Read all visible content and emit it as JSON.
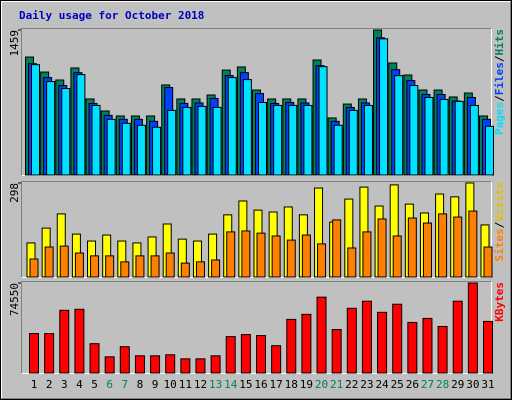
{
  "chart_data": [
    {
      "type": "bar",
      "title": "Daily usage for October 2018",
      "title_color": "#0000c0",
      "ylim": [
        0,
        1459
      ],
      "yticks": [
        1459
      ],
      "legend_separator": "/",
      "series": [
        {
          "name": "Hits",
          "color": "#00805c",
          "values": [
            1187,
            1036,
            956,
            1077,
            765,
            644,
            594,
            594,
            594,
            906,
            765,
            765,
            805,
            1056,
            1087,
            855,
            765,
            765,
            765,
            1157,
            574,
            714,
            765,
            1459,
            1127,
            1006,
            855,
            855,
            785,
            825,
            594
          ]
        },
        {
          "name": "Files",
          "color": "#0040ff",
          "values": [
            1120,
            980,
            900,
            1030,
            720,
            600,
            560,
            560,
            540,
            880,
            720,
            725,
            770,
            1000,
            1030,
            820,
            720,
            730,
            725,
            1100,
            540,
            680,
            725,
            1380,
            1060,
            950,
            810,
            810,
            745,
            780,
            560
          ]
        },
        {
          "name": "Pages",
          "color": "#00e0ff",
          "values": [
            1110,
            940,
            870,
            1010,
            700,
            560,
            520,
            500,
            480,
            650,
            680,
            690,
            680,
            980,
            960,
            730,
            700,
            700,
            700,
            1090,
            500,
            650,
            700,
            1370,
            1000,
            900,
            780,
            760,
            740,
            700,
            490
          ]
        }
      ]
    },
    {
      "type": "bar",
      "ylim": [
        0,
        298
      ],
      "yticks": [
        298
      ],
      "legend_separator": "/",
      "series": [
        {
          "name": "Visits",
          "color": "#ffff00",
          "label_color": "#e0c000",
          "values": [
            108,
            155,
            200,
            136,
            114,
            133,
            114,
            108,
            127,
            168,
            120,
            114,
            136,
            197,
            241,
            212,
            206,
            222,
            197,
            282,
            174,
            247,
            285,
            225,
            292,
            231,
            203,
            263,
            254,
            298,
            165
          ]
        },
        {
          "name": "Sites",
          "color": "#ff8000",
          "values": [
            57,
            95,
            98,
            76,
            67,
            67,
            48,
            67,
            67,
            76,
            44,
            48,
            54,
            143,
            146,
            139,
            130,
            117,
            133,
            105,
            181,
            92,
            143,
            184,
            130,
            187,
            171,
            200,
            190,
            209,
            95
          ]
        }
      ]
    },
    {
      "type": "bar",
      "ylim": [
        0,
        74550
      ],
      "yticks": [
        74550
      ],
      "categories": [
        "1",
        "2",
        "3",
        "4",
        "5",
        "6",
        "7",
        "8",
        "9",
        "10",
        "11",
        "12",
        "13",
        "14",
        "15",
        "16",
        "17",
        "18",
        "19",
        "20",
        "21",
        "22",
        "23",
        "24",
        "25",
        "26",
        "27",
        "28",
        "29",
        "30",
        "31"
      ],
      "highlight_categories": [
        "6",
        "7",
        "13",
        "14",
        "20",
        "21",
        "27",
        "28"
      ],
      "highlight_color": "#00805c",
      "series": [
        {
          "name": "KBytes",
          "color": "#ff0000",
          "values": [
            32670,
            32670,
            51930,
            52770,
            24290,
            13400,
            21780,
            14240,
            14240,
            15080,
            11730,
            11730,
            14240,
            30150,
            31830,
            30990,
            22620,
            44390,
            48580,
            62820,
            36020,
            53610,
            59470,
            50260,
            56960,
            41880,
            45230,
            38530,
            59470,
            74550,
            42720
          ]
        }
      ]
    }
  ]
}
